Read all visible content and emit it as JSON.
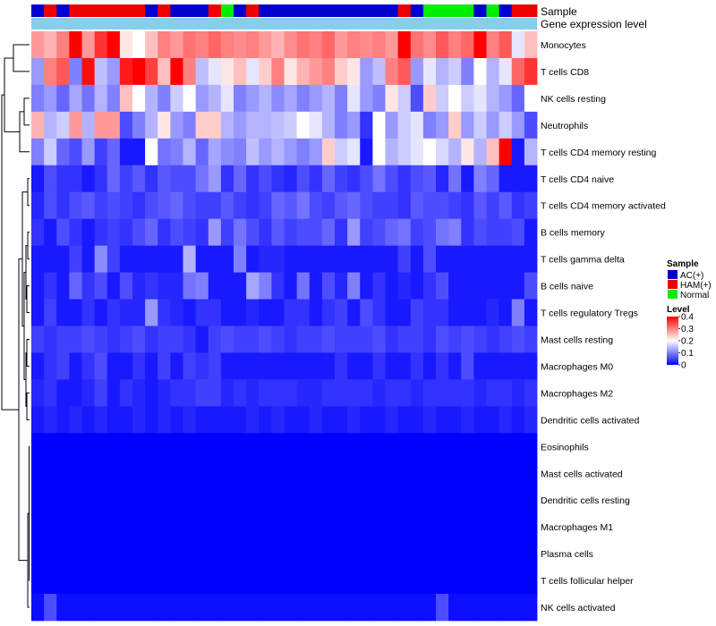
{
  "chart_data": {
    "type": "heatmap",
    "title": "",
    "annotation_tracks": [
      {
        "name": "Sample",
        "label": "Sample"
      },
      {
        "name": "Gene expression level",
        "label": "Gene expression level"
      }
    ],
    "column_groups": [
      "AC(+)",
      "HAM(+)",
      "AC(+)",
      "HAM(+)",
      "HAM(+)",
      "HAM(+)",
      "HAM(+)",
      "HAM(+)",
      "HAM(+)",
      "AC(+)",
      "HAM(+)",
      "AC(+)",
      "AC(+)",
      "AC(+)",
      "HAM(+)",
      "Normal",
      "AC(+)",
      "HAM(+)",
      "AC(+)",
      "AC(+)",
      "AC(+)",
      "AC(+)",
      "AC(+)",
      "AC(+)",
      "AC(+)",
      "AC(+)",
      "AC(+)",
      "AC(+)",
      "AC(+)",
      "HAM(+)",
      "AC(+)",
      "Normal",
      "Normal",
      "Normal",
      "Normal",
      "AC(+)",
      "Normal",
      "AC(+)",
      "HAM(+)",
      "HAM(+)"
    ],
    "rows": [
      "Monocytes",
      "T cells CD8",
      "NK cells resting",
      "Neutrophils",
      "T cells CD4 memory resting",
      "T cells CD4 naive",
      "T cells CD4 memory activated",
      "B cells memory",
      "T cells gamma delta",
      "B cells naive",
      "T cells regulatory  Tregs",
      "Mast cells resting",
      "Macrophages M0",
      "Macrophages M2",
      "Dendritic cells activated",
      "Eosinophils",
      "Mast cells activated",
      "Dendritic cells resting",
      "Macrophages M1",
      "Plasma cells",
      "T cells follicular helper",
      "NK cells activated"
    ],
    "values": [
      [
        0.28,
        0.26,
        0.3,
        0.4,
        0.28,
        0.36,
        0.4,
        0.22,
        0.2,
        0.25,
        0.3,
        0.28,
        0.31,
        0.3,
        0.32,
        0.3,
        0.29,
        0.3,
        0.28,
        0.26,
        0.29,
        0.31,
        0.3,
        0.32,
        0.28,
        0.3,
        0.29,
        0.3,
        0.28,
        0.4,
        0.31,
        0.29,
        0.33,
        0.3,
        0.32,
        0.4,
        0.3,
        0.33,
        0.18,
        0.25
      ],
      [
        0.12,
        0.3,
        0.33,
        0.1,
        0.39,
        0.15,
        0.12,
        0.38,
        0.4,
        0.35,
        0.25,
        0.4,
        0.3,
        0.15,
        0.18,
        0.22,
        0.25,
        0.18,
        0.24,
        0.3,
        0.22,
        0.26,
        0.28,
        0.3,
        0.24,
        0.22,
        0.12,
        0.15,
        0.3,
        0.33,
        0.12,
        0.18,
        0.14,
        0.16,
        0.1,
        0.2,
        0.14,
        0.18,
        0.32,
        0.36
      ],
      [
        0.1,
        0.12,
        0.08,
        0.13,
        0.09,
        0.14,
        0.1,
        0.25,
        0.2,
        0.14,
        0.1,
        0.16,
        0.2,
        0.12,
        0.14,
        0.18,
        0.1,
        0.12,
        0.14,
        0.11,
        0.13,
        0.1,
        0.12,
        0.14,
        0.1,
        0.18,
        0.12,
        0.1,
        0.22,
        0.16,
        0.06,
        0.24,
        0.16,
        0.2,
        0.16,
        0.18,
        0.14,
        0.12,
        0.08,
        0.2
      ],
      [
        0.26,
        0.14,
        0.16,
        0.28,
        0.14,
        0.28,
        0.28,
        0.06,
        0.1,
        0.14,
        0.22,
        0.12,
        0.1,
        0.24,
        0.24,
        0.14,
        0.12,
        0.14,
        0.14,
        0.15,
        0.16,
        0.2,
        0.18,
        0.14,
        0.1,
        0.12,
        0.04,
        0.2,
        0.12,
        0.16,
        0.18,
        0.1,
        0.12,
        0.24,
        0.12,
        0.16,
        0.12,
        0.16,
        0.12,
        0.06
      ],
      [
        0.1,
        0.16,
        0.08,
        0.06,
        0.12,
        0.05,
        0.08,
        0.02,
        0.02,
        0.2,
        0.09,
        0.1,
        0.14,
        0.08,
        0.13,
        0.11,
        0.1,
        0.15,
        0.12,
        0.14,
        0.12,
        0.1,
        0.12,
        0.24,
        0.16,
        0.18,
        0.02,
        0.2,
        0.14,
        0.16,
        0.18,
        0.2,
        0.17,
        0.14,
        0.22,
        0.14,
        0.25,
        0.4,
        0.02,
        0.14
      ],
      [
        0.02,
        0.06,
        0.04,
        0.04,
        0.02,
        0.04,
        0.08,
        0.05,
        0.07,
        0.04,
        0.07,
        0.06,
        0.06,
        0.09,
        0.12,
        0.04,
        0.08,
        0.04,
        0.06,
        0.04,
        0.03,
        0.06,
        0.04,
        0.08,
        0.05,
        0.04,
        0.06,
        0.09,
        0.06,
        0.04,
        0.06,
        0.07,
        0.03,
        0.09,
        0.02,
        0.1,
        0.08,
        0.02,
        0.02,
        0.02
      ],
      [
        0.03,
        0.06,
        0.04,
        0.06,
        0.07,
        0.05,
        0.06,
        0.05,
        0.04,
        0.06,
        0.07,
        0.08,
        0.06,
        0.05,
        0.05,
        0.07,
        0.05,
        0.04,
        0.05,
        0.08,
        0.07,
        0.09,
        0.06,
        0.05,
        0.07,
        0.08,
        0.06,
        0.05,
        0.05,
        0.04,
        0.07,
        0.06,
        0.06,
        0.05,
        0.04,
        0.07,
        0.05,
        0.07,
        0.04,
        0.05
      ],
      [
        0.04,
        0.02,
        0.06,
        0.04,
        0.02,
        0.04,
        0.05,
        0.04,
        0.06,
        0.08,
        0.04,
        0.06,
        0.05,
        0.04,
        0.12,
        0.05,
        0.09,
        0.06,
        0.04,
        0.07,
        0.05,
        0.06,
        0.06,
        0.08,
        0.04,
        0.12,
        0.05,
        0.06,
        0.08,
        0.09,
        0.05,
        0.06,
        0.09,
        0.1,
        0.04,
        0.06,
        0.05,
        0.05,
        0.06,
        0.02
      ],
      [
        0.02,
        0.02,
        0.02,
        0.05,
        0.02,
        0.11,
        0.05,
        0.02,
        0.02,
        0.02,
        0.02,
        0.02,
        0.14,
        0.02,
        0.02,
        0.02,
        0.1,
        0.02,
        0.03,
        0.03,
        0.02,
        0.02,
        0.02,
        0.02,
        0.02,
        0.02,
        0.02,
        0.02,
        0.02,
        0.05,
        0.02,
        0.06,
        0.02,
        0.02,
        0.02,
        0.02,
        0.02,
        0.02,
        0.02,
        0.02
      ],
      [
        0.02,
        0.04,
        0.02,
        0.08,
        0.04,
        0.06,
        0.02,
        0.06,
        0.03,
        0.04,
        0.03,
        0.03,
        0.09,
        0.1,
        0.02,
        0.02,
        0.02,
        0.13,
        0.1,
        0.04,
        0.02,
        0.09,
        0.02,
        0.06,
        0.03,
        0.1,
        0.02,
        0.04,
        0.02,
        0.03,
        0.02,
        0.04,
        0.06,
        0.02,
        0.02,
        0.02,
        0.02,
        0.02,
        0.02,
        0.06
      ],
      [
        0.02,
        0.05,
        0.02,
        0.02,
        0.04,
        0.02,
        0.04,
        0.03,
        0.03,
        0.12,
        0.04,
        0.03,
        0.02,
        0.04,
        0.04,
        0.02,
        0.02,
        0.03,
        0.02,
        0.02,
        0.04,
        0.04,
        0.02,
        0.04,
        0.05,
        0.02,
        0.06,
        0.04,
        0.02,
        0.02,
        0.05,
        0.04,
        0.04,
        0.02,
        0.02,
        0.02,
        0.03,
        0.02,
        0.1,
        0.02
      ],
      [
        0.05,
        0.04,
        0.05,
        0.05,
        0.06,
        0.05,
        0.04,
        0.05,
        0.06,
        0.04,
        0.05,
        0.05,
        0.04,
        0.02,
        0.05,
        0.06,
        0.05,
        0.05,
        0.06,
        0.05,
        0.04,
        0.05,
        0.05,
        0.06,
        0.05,
        0.05,
        0.05,
        0.06,
        0.04,
        0.05,
        0.05,
        0.04,
        0.06,
        0.05,
        0.06,
        0.05,
        0.04,
        0.05,
        0.06,
        0.05
      ],
      [
        0.02,
        0.04,
        0.05,
        0.02,
        0.04,
        0.06,
        0.02,
        0.02,
        0.04,
        0.02,
        0.05,
        0.02,
        0.05,
        0.04,
        0.05,
        0.02,
        0.02,
        0.02,
        0.02,
        0.02,
        0.02,
        0.02,
        0.02,
        0.02,
        0.04,
        0.02,
        0.02,
        0.04,
        0.02,
        0.02,
        0.04,
        0.02,
        0.04,
        0.02,
        0.06,
        0.02,
        0.02,
        0.02,
        0.02,
        0.02
      ],
      [
        0.03,
        0.04,
        0.02,
        0.02,
        0.03,
        0.05,
        0.02,
        0.04,
        0.03,
        0.02,
        0.03,
        0.04,
        0.04,
        0.05,
        0.05,
        0.03,
        0.04,
        0.03,
        0.04,
        0.04,
        0.04,
        0.03,
        0.03,
        0.04,
        0.04,
        0.04,
        0.04,
        0.03,
        0.04,
        0.04,
        0.03,
        0.04,
        0.04,
        0.04,
        0.04,
        0.03,
        0.04,
        0.04,
        0.03,
        0.04
      ],
      [
        0.02,
        0.03,
        0.02,
        0.03,
        0.02,
        0.03,
        0.02,
        0.02,
        0.03,
        0.02,
        0.03,
        0.02,
        0.03,
        0.02,
        0.02,
        0.02,
        0.02,
        0.03,
        0.02,
        0.03,
        0.02,
        0.02,
        0.03,
        0.02,
        0.02,
        0.03,
        0.02,
        0.02,
        0.03,
        0.02,
        0.02,
        0.03,
        0.02,
        0.02,
        0.03,
        0.02,
        0.02,
        0.03,
        0.02,
        0.03
      ],
      [
        0,
        0,
        0,
        0,
        0,
        0,
        0,
        0,
        0,
        0,
        0,
        0,
        0,
        0,
        0,
        0,
        0,
        0,
        0,
        0,
        0,
        0,
        0,
        0,
        0,
        0,
        0,
        0,
        0,
        0,
        0,
        0,
        0,
        0,
        0,
        0,
        0,
        0,
        0,
        0
      ],
      [
        0,
        0,
        0,
        0,
        0,
        0,
        0,
        0,
        0,
        0,
        0,
        0,
        0,
        0,
        0,
        0,
        0,
        0,
        0,
        0,
        0,
        0,
        0,
        0,
        0,
        0,
        0,
        0,
        0,
        0,
        0,
        0,
        0,
        0,
        0,
        0,
        0,
        0,
        0,
        0
      ],
      [
        0,
        0,
        0,
        0,
        0,
        0,
        0,
        0,
        0,
        0,
        0,
        0,
        0,
        0,
        0,
        0,
        0,
        0,
        0,
        0,
        0,
        0,
        0,
        0,
        0,
        0,
        0,
        0,
        0,
        0,
        0,
        0,
        0,
        0,
        0,
        0,
        0,
        0,
        0,
        0
      ],
      [
        0,
        0,
        0,
        0,
        0,
        0,
        0,
        0,
        0,
        0,
        0,
        0,
        0,
        0,
        0,
        0,
        0,
        0,
        0,
        0,
        0,
        0,
        0,
        0,
        0,
        0,
        0,
        0,
        0,
        0,
        0,
        0,
        0,
        0,
        0,
        0,
        0,
        0,
        0,
        0
      ],
      [
        0,
        0,
        0,
        0,
        0,
        0,
        0,
        0,
        0,
        0,
        0,
        0,
        0,
        0,
        0,
        0,
        0,
        0,
        0,
        0,
        0,
        0,
        0,
        0,
        0,
        0,
        0,
        0,
        0,
        0,
        0,
        0,
        0,
        0,
        0,
        0,
        0,
        0,
        0,
        0
      ],
      [
        0,
        0,
        0,
        0,
        0,
        0,
        0,
        0,
        0,
        0,
        0,
        0,
        0,
        0,
        0,
        0,
        0,
        0,
        0,
        0,
        0,
        0,
        0,
        0,
        0,
        0,
        0,
        0,
        0,
        0,
        0,
        0,
        0,
        0,
        0,
        0,
        0,
        0,
        0,
        0
      ],
      [
        0.01,
        0.06,
        0.01,
        0.01,
        0.01,
        0.01,
        0.01,
        0.01,
        0.01,
        0.01,
        0.01,
        0.01,
        0.01,
        0.01,
        0.01,
        0.01,
        0.01,
        0.01,
        0.01,
        0.01,
        0.01,
        0.01,
        0.01,
        0.01,
        0.01,
        0.01,
        0.01,
        0.01,
        0.01,
        0.01,
        0.01,
        0.01,
        0.06,
        0.01,
        0.01,
        0.01,
        0.01,
        0.01,
        0.01,
        0.01
      ]
    ],
    "color_scale": {
      "min": 0,
      "mid": 0.2,
      "max": 0.4,
      "low_color": "#0000ff",
      "mid_color": "#ffffff",
      "high_color": "#ff0000"
    },
    "legend": {
      "sample_title": "Sample",
      "sample_entries": [
        {
          "label": "AC(+)",
          "color": "#0000cc"
        },
        {
          "label": "HAM(+)",
          "color": "#ee0000"
        },
        {
          "label": "Normal",
          "color": "#00ee00"
        }
      ],
      "level_title": "Level",
      "level_ticks": [
        0.4,
        0.3,
        0.2,
        0.1,
        0
      ],
      "level_tick_labels": [
        "0.4",
        "0.3",
        "0.2",
        "0.1",
        "0"
      ]
    },
    "gene_expression_color": "#87ceeb",
    "row_dendrogram": true
  }
}
